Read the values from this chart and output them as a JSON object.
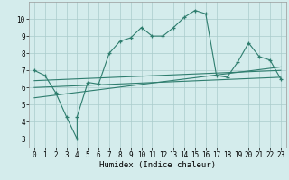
{
  "xlabel": "Humidex (Indice chaleur)",
  "bg_color": "#d4ecec",
  "grid_color": "#aacccc",
  "line_color": "#2e7d6e",
  "xlim": [
    -0.5,
    23.5
  ],
  "ylim": [
    2.5,
    11.0
  ],
  "yticks": [
    3,
    4,
    5,
    6,
    7,
    8,
    9,
    10
  ],
  "xticks": [
    0,
    1,
    2,
    3,
    4,
    5,
    6,
    7,
    8,
    9,
    10,
    11,
    12,
    13,
    14,
    15,
    16,
    17,
    18,
    19,
    20,
    21,
    22,
    23
  ],
  "series1_x": [
    0,
    1,
    2,
    3,
    4,
    4,
    5,
    6,
    7,
    8,
    9,
    10,
    11,
    12,
    13,
    14,
    15,
    16,
    17,
    18,
    19,
    20,
    21,
    22,
    23
  ],
  "series1_y": [
    7.0,
    6.7,
    5.7,
    4.3,
    3.0,
    4.3,
    6.3,
    6.2,
    8.0,
    8.7,
    8.9,
    9.5,
    9.0,
    9.0,
    9.5,
    10.1,
    10.5,
    10.3,
    6.7,
    6.6,
    7.5,
    8.6,
    7.8,
    7.6,
    6.5
  ],
  "series2_x": [
    0,
    23
  ],
  "series2_y": [
    6.0,
    6.6
  ],
  "series3_x": [
    0,
    23
  ],
  "series3_y": [
    6.4,
    7.0
  ],
  "series4_x": [
    0,
    23
  ],
  "series4_y": [
    5.4,
    7.2
  ]
}
